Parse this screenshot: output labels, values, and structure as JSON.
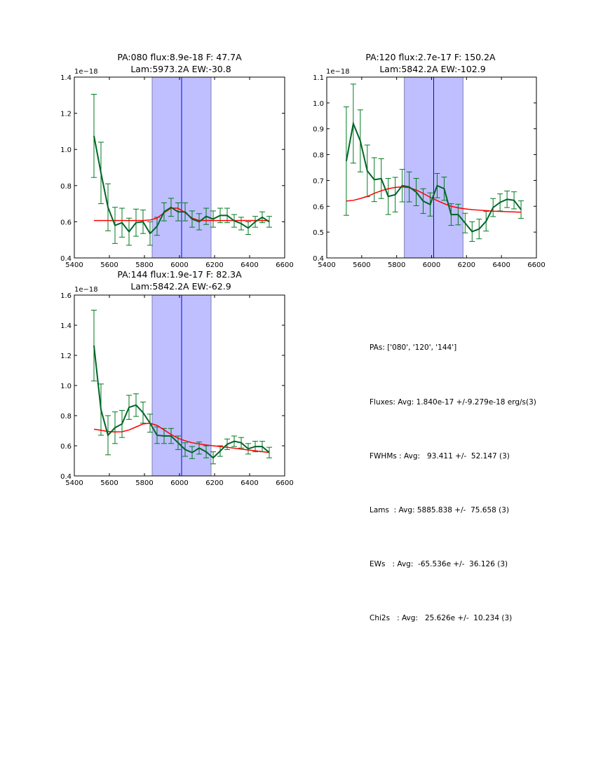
{
  "colors": {
    "data_line": "#006428",
    "errorbar": "#007a1f",
    "fit_line": "#ff0000",
    "band_fill": "#bfbfff",
    "band_edge": "#8080b0",
    "center_line": "#0000ff"
  },
  "chart_data": [
    {
      "type": "line",
      "title_line1": "PA:080 flux:8.9e-18 F: 47.7A",
      "title_line2": "Lam:5973.2A EW:-30.8",
      "offset_label": "1e−18",
      "xlabel": "",
      "ylabel": "",
      "xlim": [
        5400,
        6600
      ],
      "ylim": [
        0.4,
        1.4
      ],
      "xticks": [
        5400,
        5600,
        5800,
        6000,
        6200,
        6400,
        6600
      ],
      "yticks": [
        0.4,
        0.6,
        0.8,
        1.0,
        1.2,
        1.4
      ],
      "ytick_labels": [
        "0.4",
        "0.6",
        "0.8",
        "1.0",
        "1.2",
        "1.4"
      ],
      "band": [
        5844,
        6180
      ],
      "center_line": 6012,
      "x": [
        5512,
        5552,
        5592,
        5632,
        5672,
        5712,
        5752,
        5792,
        5832,
        5872,
        5912,
        5952,
        5992,
        6032,
        6072,
        6112,
        6152,
        6192,
        6232,
        6272,
        6312,
        6352,
        6392,
        6432,
        6472,
        6512
      ],
      "series": [
        {
          "name": "data",
          "values": [
            1.075,
            0.87,
            0.68,
            0.58,
            0.595,
            0.545,
            0.595,
            0.6,
            0.535,
            0.575,
            0.655,
            0.68,
            0.655,
            0.655,
            0.615,
            0.6,
            0.63,
            0.615,
            0.635,
            0.635,
            0.605,
            0.59,
            0.565,
            0.6,
            0.625,
            0.6
          ],
          "errors": [
            0.23,
            0.17,
            0.13,
            0.1,
            0.08,
            0.075,
            0.075,
            0.065,
            0.065,
            0.05,
            0.05,
            0.05,
            0.05,
            0.05,
            0.045,
            0.045,
            0.045,
            0.045,
            0.04,
            0.04,
            0.035,
            0.035,
            0.035,
            0.03,
            0.03,
            0.03
          ]
        },
        {
          "name": "fit",
          "values": [
            0.607,
            0.607,
            0.607,
            0.607,
            0.607,
            0.607,
            0.607,
            0.607,
            0.61,
            0.62,
            0.65,
            0.675,
            0.675,
            0.65,
            0.62,
            0.607,
            0.607,
            0.607,
            0.607,
            0.607,
            0.607,
            0.607,
            0.607,
            0.607,
            0.607,
            0.605
          ]
        }
      ]
    },
    {
      "type": "line",
      "title_line1": "PA:120 flux:2.7e-17 F: 150.2A",
      "title_line2": "Lam:5842.2A EW:-102.9",
      "offset_label": "1e−18",
      "xlabel": "",
      "ylabel": "",
      "xlim": [
        5400,
        6600
      ],
      "ylim": [
        0.4,
        1.1
      ],
      "xticks": [
        5400,
        5600,
        5800,
        6000,
        6200,
        6400,
        6600
      ],
      "yticks": [
        0.4,
        0.5,
        0.6,
        0.7,
        0.8,
        0.9,
        1.0,
        1.1
      ],
      "ytick_labels": [
        "0.4",
        "0.5",
        "0.6",
        "0.7",
        "0.8",
        "0.9",
        "1.0",
        "1.1"
      ],
      "band": [
        5844,
        6180
      ],
      "center_line": 6012,
      "x": [
        5512,
        5552,
        5592,
        5632,
        5672,
        5712,
        5752,
        5792,
        5832,
        5872,
        5912,
        5952,
        5992,
        6032,
        6072,
        6112,
        6152,
        6192,
        6232,
        6272,
        6312,
        6352,
        6392,
        6432,
        6472,
        6512
      ],
      "series": [
        {
          "name": "data",
          "values": [
            0.775,
            0.92,
            0.853,
            0.737,
            0.703,
            0.707,
            0.638,
            0.645,
            0.68,
            0.675,
            0.655,
            0.62,
            0.607,
            0.68,
            0.668,
            0.568,
            0.568,
            0.535,
            0.502,
            0.512,
            0.542,
            0.595,
            0.615,
            0.627,
            0.623,
            0.587
          ],
          "errors": [
            0.21,
            0.153,
            0.12,
            0.1,
            0.085,
            0.077,
            0.07,
            0.067,
            0.063,
            0.058,
            0.053,
            0.048,
            0.045,
            0.047,
            0.045,
            0.042,
            0.04,
            0.038,
            0.038,
            0.038,
            0.038,
            0.035,
            0.033,
            0.032,
            0.033,
            0.034
          ]
        },
        {
          "name": "fit",
          "values": [
            0.62,
            0.623,
            0.63,
            0.638,
            0.65,
            0.66,
            0.668,
            0.673,
            0.675,
            0.672,
            0.663,
            0.65,
            0.635,
            0.622,
            0.61,
            0.6,
            0.594,
            0.59,
            0.587,
            0.585,
            0.583,
            0.581,
            0.58,
            0.579,
            0.578,
            0.577
          ]
        }
      ]
    },
    {
      "type": "line",
      "title_line1": "PA:144 flux:1.9e-17 F: 82.3A",
      "title_line2": "Lam:5842.2A EW:-62.9",
      "offset_label": "1e−18",
      "xlabel": "",
      "ylabel": "",
      "xlim": [
        5400,
        6600
      ],
      "ylim": [
        0.4,
        1.6
      ],
      "xticks": [
        5400,
        5600,
        5800,
        6000,
        6200,
        6400,
        6600
      ],
      "yticks": [
        0.4,
        0.6,
        0.8,
        1.0,
        1.2,
        1.4,
        1.6
      ],
      "ytick_labels": [
        "0.4",
        "0.6",
        "0.8",
        "1.0",
        "1.2",
        "1.4",
        "1.6"
      ],
      "band": [
        5844,
        6180
      ],
      "center_line": 6012,
      "x": [
        5512,
        5552,
        5592,
        5632,
        5672,
        5712,
        5752,
        5792,
        5832,
        5872,
        5912,
        5952,
        5992,
        6032,
        6072,
        6112,
        6152,
        6192,
        6232,
        6272,
        6312,
        6352,
        6392,
        6432,
        6472,
        6512
      ],
      "series": [
        {
          "name": "data",
          "values": [
            1.265,
            0.84,
            0.67,
            0.72,
            0.745,
            0.855,
            0.87,
            0.82,
            0.75,
            0.67,
            0.665,
            0.665,
            0.62,
            0.575,
            0.555,
            0.585,
            0.56,
            0.52,
            0.565,
            0.61,
            0.63,
            0.62,
            0.58,
            0.595,
            0.595,
            0.555
          ],
          "errors": [
            0.235,
            0.17,
            0.13,
            0.105,
            0.09,
            0.08,
            0.075,
            0.07,
            0.06,
            0.055,
            0.05,
            0.05,
            0.045,
            0.045,
            0.04,
            0.04,
            0.04,
            0.04,
            0.035,
            0.035,
            0.035,
            0.035,
            0.035,
            0.035,
            0.035,
            0.035
          ]
        },
        {
          "name": "fit",
          "values": [
            0.71,
            0.703,
            0.695,
            0.692,
            0.693,
            0.705,
            0.725,
            0.745,
            0.75,
            0.735,
            0.705,
            0.675,
            0.65,
            0.633,
            0.62,
            0.612,
            0.605,
            0.6,
            0.595,
            0.59,
            0.584,
            0.578,
            0.572,
            0.567,
            0.561,
            0.555
          ]
        }
      ]
    }
  ],
  "stats": {
    "pas": "PAs: ['080', '120', '144']",
    "fluxes": "Fluxes: Avg: 1.840e-17 +/-9.279e-18 erg/s(3)",
    "fwhms": "FWHMs : Avg:   93.411 +/-  52.147 (3)",
    "lams": "Lams  : Avg: 5885.838 +/-  75.658 (3)",
    "ews": "EWs   : Avg:  -65.536e +/-  36.126 (3)",
    "chi2s": "Chi2s   : Avg:   25.626e +/-  10.234 (3)"
  }
}
